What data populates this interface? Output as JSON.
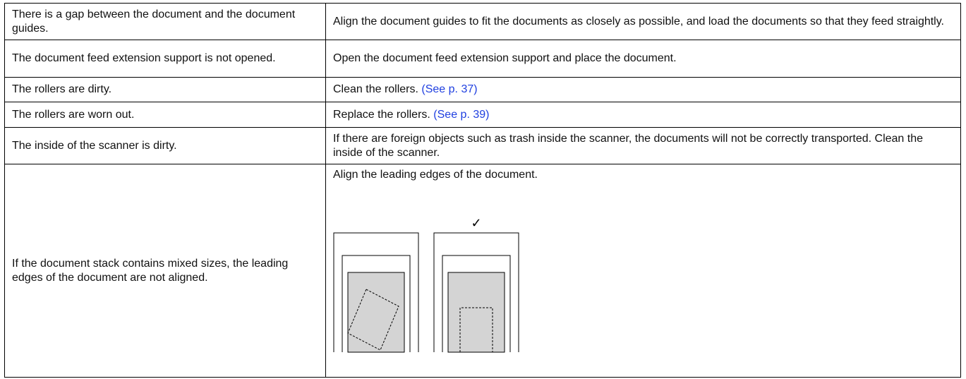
{
  "table": {
    "rows": [
      {
        "cause": "There is a gap between the document and the document guides.",
        "remedy": "Align the document guides to fit the documents as closely as possible, and load the documents so that they feed straightly."
      },
      {
        "cause": "The document feed extension support is not opened.",
        "remedy": "Open the document feed extension support and place the document."
      },
      {
        "cause": "The rollers are dirty.",
        "remedy": "Clean the rollers.",
        "link": "(See p. 37)"
      },
      {
        "cause": "The rollers are worn out.",
        "remedy": "Replace the rollers.",
        "link": "(See p. 39)"
      },
      {
        "cause": "The inside of the scanner is dirty.",
        "remedy": "If there are foreign objects such as trash inside the scanner, the documents will not be correctly transported. Clean the inside of the scanner."
      },
      {
        "cause": "If the document stack contains mixed sizes, the leading edges of the document are not aligned.",
        "remedy": "Align the leading edges of the document."
      }
    ]
  },
  "figure": {
    "check": "✓"
  }
}
